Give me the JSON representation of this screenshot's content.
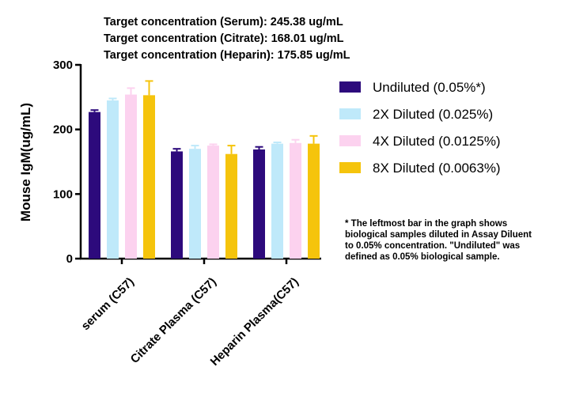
{
  "chart_data": {
    "type": "bar",
    "title_lines": [
      "Target concentration (Serum): 245.38 ug/mL",
      "Target concentration (Citrate): 168.01 ug/mL",
      "Target concentration (Heparin): 175.85 ug/mL"
    ],
    "ylabel": "Mouse IgM(ug/mL)",
    "xlabel": "",
    "ylim": [
      0,
      300
    ],
    "yticks": [
      "0",
      "100",
      "200",
      "300"
    ],
    "categories": [
      "serum (C57)",
      "Citrate Plasma (C57)",
      "Heparin Plasma(C57)"
    ],
    "legend_position": "right",
    "grid": false,
    "series": [
      {
        "name": "Undiluted (0.05%*)",
        "color": "#2d0a7c",
        "values": [
          227,
          166,
          169
        ],
        "errors": [
          3,
          4,
          4
        ]
      },
      {
        "name": "2X Diluted (0.025%)",
        "color": "#bfe9fa",
        "values": [
          245,
          170,
          178
        ],
        "errors": [
          3,
          5,
          2
        ]
      },
      {
        "name": "4X Diluted (0.0125%)",
        "color": "#fcd2ef",
        "values": [
          254,
          175,
          179
        ],
        "errors": [
          10,
          2,
          5
        ]
      },
      {
        "name": "8X Diluted (0.0063%)",
        "color": "#f5c40c",
        "values": [
          253,
          162,
          178
        ],
        "errors": [
          22,
          13,
          12
        ]
      }
    ],
    "footnote_lines": [
      "* The leftmost bar in the graph shows",
      "biological samples diluted in Assay Diluent",
      "to 0.05% concentration. \"Undiluted\" was",
      "defined as 0.05% biological sample."
    ]
  }
}
